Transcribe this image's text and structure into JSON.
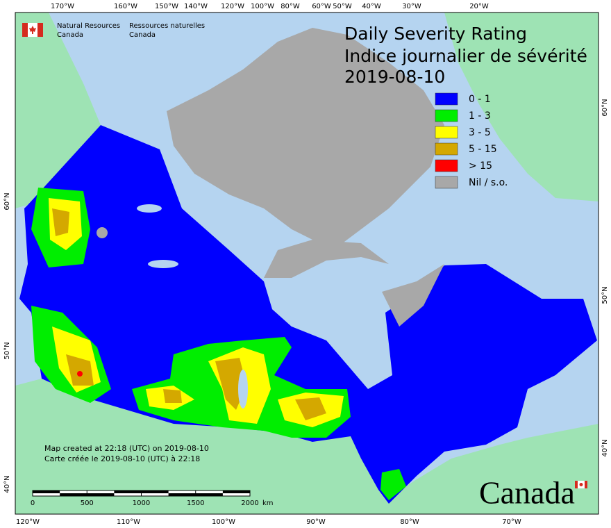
{
  "agency": {
    "en_line1": "Natural Resources",
    "en_line2": "Canada",
    "fr_line1": "Ressources naturelles",
    "fr_line2": "Canada"
  },
  "title": {
    "en": "Daily Severity Rating",
    "fr": "Indice journalier de sévérité",
    "date": "2019-08-10"
  },
  "legend": [
    {
      "label": "0 - 1",
      "color": "#0000ff"
    },
    {
      "label": "1 - 3",
      "color": "#00ee00"
    },
    {
      "label": "3 - 5",
      "color": "#ffff00"
    },
    {
      "label": "5 - 15",
      "color": "#d4a800"
    },
    {
      "label": "> 15",
      "color": "#ff0000"
    },
    {
      "label": "Nil / s.o.",
      "color": "#a8a8a8"
    }
  ],
  "longitude_labels_top": [
    "170°W",
    "160°W",
    "150°W",
    "140°W",
    "120°W",
    "100°W",
    "80°W",
    "60°W",
    "50°W",
    "40°W",
    "30°W",
    "20°W"
  ],
  "longitude_labels_bottom": [
    "120°W",
    "110°W",
    "100°W",
    "90°W",
    "80°W",
    "70°W"
  ],
  "latitude_labels_left": [
    "60°N",
    "50°N",
    "40°N"
  ],
  "latitude_labels_right": [
    "60°N",
    "50°N",
    "40°N"
  ],
  "footer": {
    "created_en": "Map created at 22:18 (UTC) on 2019-08-10",
    "created_fr": "Carte créée le 2019-08-10 (UTC) à 22:18"
  },
  "scale_bar": {
    "ticks": [
      0,
      500,
      1000,
      1500,
      2000
    ],
    "unit": "km"
  },
  "wordmark": "Canada"
}
